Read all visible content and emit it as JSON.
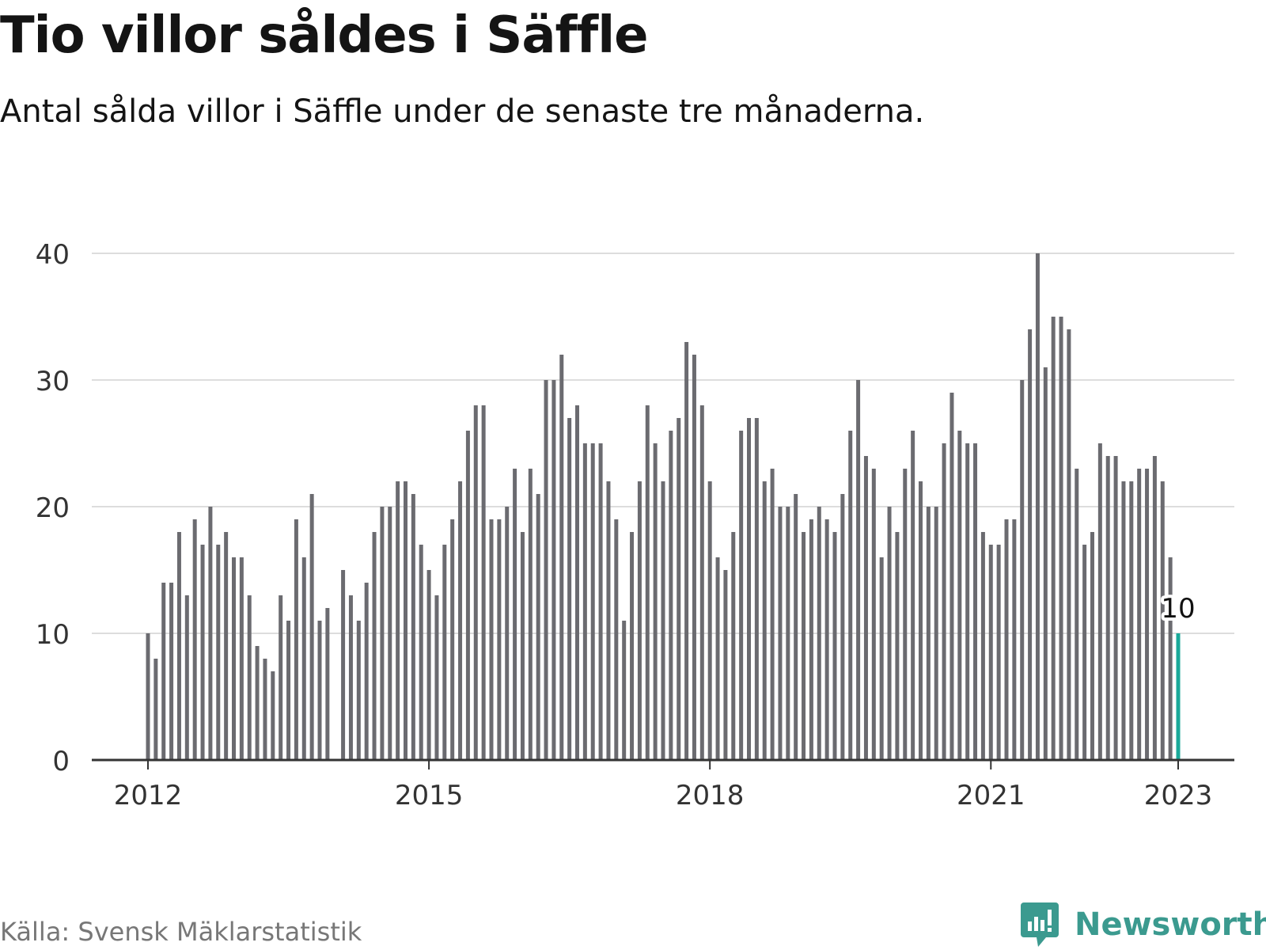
{
  "title": "Tio villor såldes i Säffle",
  "subtitle": "Antal sålda villor i Säffle under de senaste tre månaderna.",
  "source": "Källa: Svensk Mäklarstatistik",
  "brand": {
    "name": "Newsworthy",
    "logo_icon": "newsworthy-chart-bubble-icon",
    "color": "#3b9a8f"
  },
  "colors": {
    "bar": "#6b6b70",
    "highlight": "#1aa99a",
    "grid": "#dddddd",
    "axis": "#333333",
    "tick_text": "#333333"
  },
  "chart_data": {
    "type": "bar",
    "x_start": "2012-01",
    "x_end": "2023-01",
    "x_step": "month",
    "values": [
      10,
      8,
      14,
      14,
      18,
      13,
      19,
      17,
      20,
      17,
      18,
      16,
      16,
      13,
      9,
      8,
      7,
      13,
      11,
      19,
      16,
      21,
      11,
      12,
      null,
      15,
      13,
      11,
      14,
      18,
      20,
      20,
      22,
      22,
      21,
      17,
      15,
      13,
      17,
      19,
      22,
      26,
      28,
      28,
      19,
      19,
      20,
      23,
      18,
      23,
      21,
      30,
      30,
      32,
      27,
      28,
      25,
      25,
      25,
      22,
      19,
      11,
      18,
      22,
      28,
      25,
      22,
      26,
      27,
      33,
      32,
      28,
      22,
      16,
      15,
      18,
      26,
      27,
      27,
      22,
      23,
      20,
      20,
      21,
      18,
      19,
      20,
      19,
      18,
      21,
      26,
      30,
      24,
      23,
      16,
      20,
      18,
      23,
      26,
      22,
      20,
      20,
      25,
      29,
      26,
      25,
      25,
      18,
      17,
      17,
      19,
      19,
      30,
      34,
      40,
      31,
      35,
      35,
      34,
      23,
      17,
      18,
      25,
      24,
      24,
      22,
      22,
      23,
      23,
      24,
      22,
      16,
      10
    ],
    "highlight_last": true,
    "highlight_label": "10",
    "y_ticks": [
      "0",
      "10",
      "20",
      "30",
      "40"
    ],
    "ylim": [
      0,
      40
    ],
    "x_ticks": [
      {
        "year": 2012,
        "label": "2012"
      },
      {
        "year": 2015,
        "label": "2015"
      },
      {
        "year": 2018,
        "label": "2018"
      },
      {
        "year": 2021,
        "label": "2021"
      },
      {
        "year": 2023,
        "label": "2023"
      }
    ],
    "grid": true,
    "legend": "none"
  }
}
